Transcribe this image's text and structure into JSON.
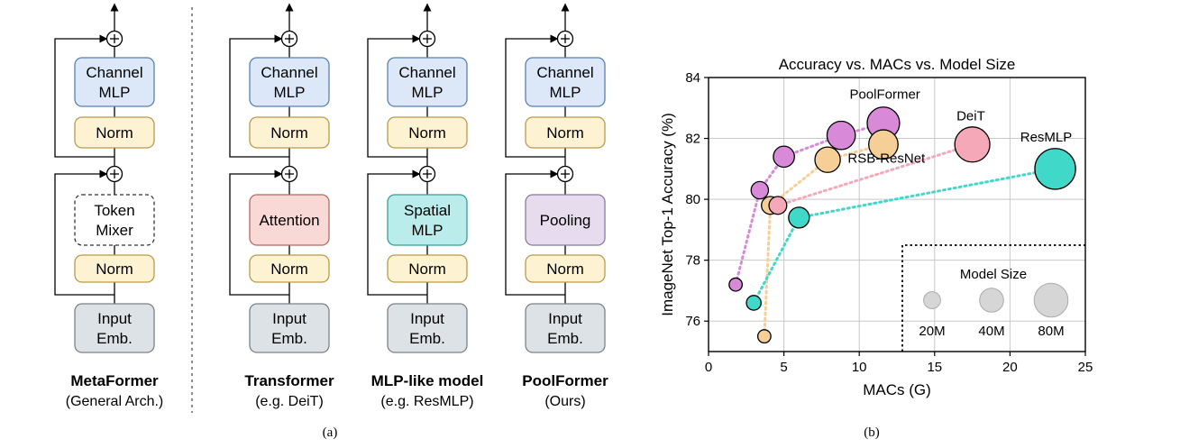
{
  "panel_a": {
    "columns": [
      {
        "id": "metaformer",
        "mixer": "Token Mixer",
        "mixer_kind": "token",
        "title": "MetaFormer",
        "subtitle": "(General Arch.)"
      },
      {
        "id": "transformer",
        "mixer": "Attention",
        "mixer_kind": "attention",
        "title": "Transformer",
        "subtitle": "(e.g. DeiT)"
      },
      {
        "id": "mlp",
        "mixer": "Spatial MLP",
        "mixer_kind": "spatial",
        "title": "MLP-like model",
        "subtitle": "(e.g. ResMLP)"
      },
      {
        "id": "poolformer",
        "mixer": "Pooling",
        "mixer_kind": "pooling",
        "title": "PoolFormer",
        "subtitle": "(Ours)"
      }
    ],
    "blocks": {
      "channel_mlp": "Channel MLP",
      "norm": "Norm",
      "input_emb": "Input Emb."
    },
    "colors": {
      "channel": "#dce8f8",
      "channel_stroke": "#5a7fb0",
      "norm": "#fdf3d2",
      "norm_stroke": "#b89a4a",
      "attention": "#f9d9d6",
      "attention_stroke": "#b66a63",
      "spatial": "#b9ecea",
      "spatial_stroke": "#3c9c98",
      "pooling": "#e6dcee",
      "pooling_stroke": "#8a7a9e",
      "input": "#dde2e6",
      "input_stroke": "#7a8288"
    },
    "caption": "(a)"
  },
  "panel_b_caption": "(b)",
  "chart_data": {
    "type": "scatter",
    "title": "Accuracy vs. MACs vs. Model Size",
    "xlabel": "MACs (G)",
    "ylabel": "ImageNet Top-1 Accuracy (%)",
    "xlim": [
      0,
      25
    ],
    "ylim": [
      75,
      84
    ],
    "xticks": [
      0,
      5,
      10,
      15,
      20,
      25
    ],
    "yticks": [
      76,
      78,
      80,
      82,
      84
    ],
    "grid": true,
    "series": [
      {
        "name": "PoolFormer",
        "color": "#d88ad8",
        "label_at": [
          11.7,
          83.3
        ],
        "points": [
          {
            "x": 1.8,
            "y": 77.2,
            "params": 12
          },
          {
            "x": 3.4,
            "y": 80.3,
            "params": 21
          },
          {
            "x": 5.0,
            "y": 81.4,
            "params": 31
          },
          {
            "x": 8.8,
            "y": 82.1,
            "params": 56
          },
          {
            "x": 11.6,
            "y": 82.5,
            "params": 73
          }
        ]
      },
      {
        "name": "RSB-ResNet",
        "color": "#f5cf96",
        "label_at": [
          11.8,
          81.2
        ],
        "points": [
          {
            "x": 3.7,
            "y": 75.5,
            "params": 12
          },
          {
            "x": 4.1,
            "y": 79.8,
            "params": 22
          },
          {
            "x": 7.9,
            "y": 81.3,
            "params": 45
          },
          {
            "x": 11.6,
            "y": 81.8,
            "params": 60
          }
        ]
      },
      {
        "name": "DeiT",
        "color": "#f5a8b8",
        "label_at": [
          17.4,
          82.6
        ],
        "points": [
          {
            "x": 4.6,
            "y": 79.8,
            "params": 22
          },
          {
            "x": 17.5,
            "y": 81.8,
            "params": 86
          }
        ]
      },
      {
        "name": "ResMLP",
        "color": "#40d8c8",
        "label_at": [
          22.4,
          81.9
        ],
        "points": [
          {
            "x": 3.0,
            "y": 76.6,
            "params": 15
          },
          {
            "x": 6.0,
            "y": 79.4,
            "params": 30
          },
          {
            "x": 23.0,
            "y": 81.0,
            "params": 116
          }
        ]
      }
    ],
    "size_legend": {
      "title": "Model Size",
      "entries": [
        {
          "label": "20M",
          "params": 20
        },
        {
          "label": "40M",
          "params": 40
        },
        {
          "label": "80M",
          "params": 80
        }
      ],
      "color": "#d6d6d6",
      "placement": "bottom-right"
    }
  }
}
